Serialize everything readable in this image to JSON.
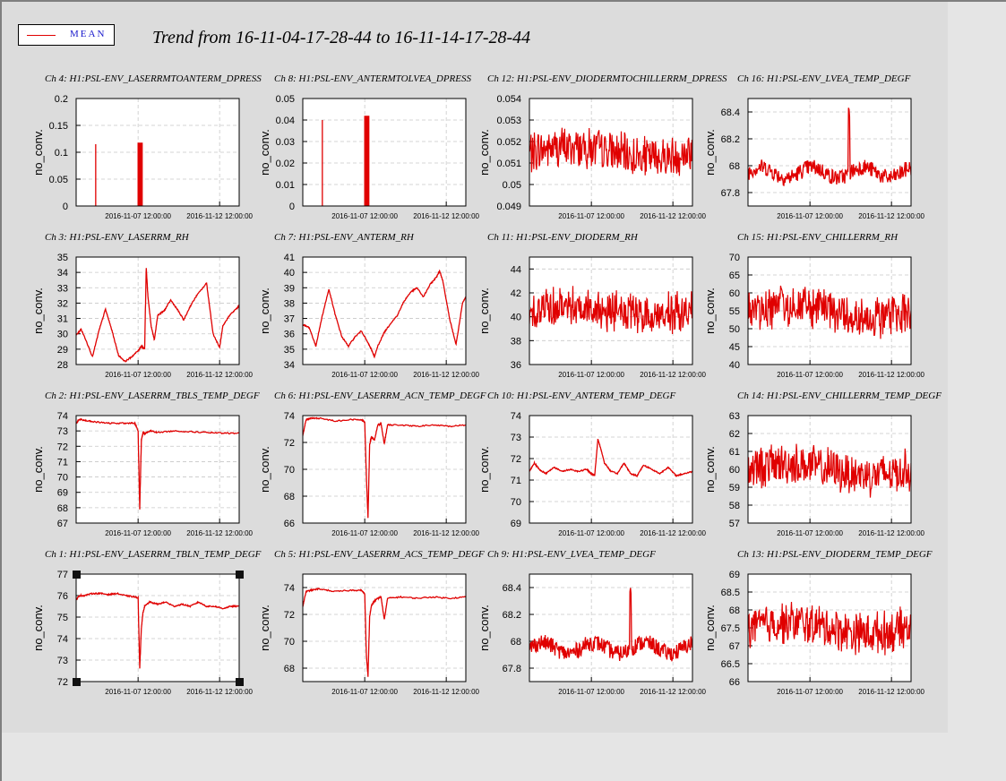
{
  "title": "Trend from 16-11-04-17-28-44 to 16-11-14-17-28-44",
  "legend": {
    "label": "MEAN",
    "color": "#e00000"
  },
  "chart_data": [
    {
      "type": "line",
      "title": "Ch 4: H1:PSL-ENV_LASERRMTOANTERM_DPRESS",
      "ylabel": "no_conv.",
      "ylim": [
        0,
        0.2
      ],
      "yticks": [
        "0",
        "0.05",
        "0.1",
        "0.15",
        "0.2"
      ],
      "xticks": [
        "2016-11-07 12:00:00",
        "2016-11-12 12:00:00"
      ],
      "style": "spikes"
    },
    {
      "type": "line",
      "title": "Ch 8: H1:PSL-ENV_ANTERMTOLVEA_DPRESS",
      "ylabel": "no_conv.",
      "ylim": [
        0,
        0.05
      ],
      "yticks": [
        "0",
        "0.01",
        "0.02",
        "0.03",
        "0.04",
        "0.05"
      ],
      "xticks": [
        "2016-11-07 12:00:00",
        "2016-11-12 12:00:00"
      ],
      "style": "spikes"
    },
    {
      "type": "line",
      "title": "Ch 12: H1:PSL-ENV_DIODERMTOCHILLERRM_DPRESS",
      "ylabel": "no_conv.",
      "ylim": [
        0.049,
        0.054
      ],
      "yticks": [
        "0.049",
        "0.05",
        "0.051",
        "0.052",
        "0.053",
        "0.054"
      ],
      "xticks": [
        "2016-11-07 12:00:00",
        "2016-11-12 12:00:00"
      ],
      "style": "noisy"
    },
    {
      "type": "line",
      "title": "Ch 16: H1:PSL-ENV_LVEA_TEMP_DEGF",
      "ylabel": "no_conv.",
      "ylim": [
        67.7,
        68.5
      ],
      "yticks": [
        "67.8",
        "68",
        "68.2",
        "68.4"
      ],
      "ytickvals": [
        67.8,
        68,
        68.2,
        68.4
      ],
      "xticks": [
        "2016-11-07 12:00:00",
        "2016-11-12 12:00:00"
      ],
      "style": "wiggle"
    },
    {
      "type": "line",
      "title": "Ch 3: H1:PSL-ENV_LASERRM_RH",
      "ylabel": "no_conv.",
      "ylim": [
        28,
        35
      ],
      "yticks": [
        "28",
        "29",
        "30",
        "31",
        "32",
        "33",
        "34",
        "35"
      ],
      "xticks": [
        "2016-11-07 12:00:00",
        "2016-11-12 12:00:00"
      ],
      "style": "smooth",
      "x": [
        0,
        0.03,
        0.06,
        0.1,
        0.14,
        0.18,
        0.22,
        0.26,
        0.3,
        0.34,
        0.38,
        0.4,
        0.42,
        0.43,
        0.44,
        0.46,
        0.48,
        0.5,
        0.54,
        0.58,
        0.62,
        0.66,
        0.7,
        0.74,
        0.8,
        0.84,
        0.88,
        0.9,
        0.94,
        0.98,
        1.0
      ],
      "y": [
        29.9,
        30.3,
        29.6,
        28.5,
        30.2,
        31.6,
        30.2,
        28.6,
        28.2,
        28.5,
        28.9,
        29.2,
        29.0,
        34.3,
        32.5,
        30.5,
        29.6,
        31.2,
        31.5,
        32.2,
        31.6,
        30.9,
        31.8,
        32.5,
        33.3,
        30.0,
        29.1,
        30.5,
        31.2,
        31.6,
        31.8
      ]
    },
    {
      "type": "line",
      "title": "Ch 7: H1:PSL-ENV_ANTERM_RH",
      "ylabel": "no_conv.",
      "ylim": [
        34,
        41
      ],
      "yticks": [
        "34",
        "35",
        "36",
        "37",
        "38",
        "39",
        "40",
        "41"
      ],
      "xticks": [
        "2016-11-07 12:00:00",
        "2016-11-12 12:00:00"
      ],
      "style": "smooth",
      "x": [
        0,
        0.04,
        0.08,
        0.12,
        0.16,
        0.2,
        0.24,
        0.28,
        0.32,
        0.36,
        0.4,
        0.42,
        0.44,
        0.46,
        0.5,
        0.54,
        0.58,
        0.62,
        0.66,
        0.7,
        0.74,
        0.78,
        0.82,
        0.84,
        0.86,
        0.9,
        0.94,
        0.98,
        1.0
      ],
      "y": [
        36.6,
        36.4,
        35.2,
        37.2,
        38.9,
        37.2,
        35.8,
        35.2,
        35.8,
        36.2,
        35.4,
        35.0,
        34.5,
        35.2,
        36.1,
        36.7,
        37.2,
        38.1,
        38.7,
        39.0,
        38.4,
        39.2,
        39.7,
        40.1,
        39.4,
        37.0,
        35.3,
        38.0,
        38.4
      ]
    },
    {
      "type": "line",
      "title": "Ch 11: H1:PSL-ENV_DIODERM_RH",
      "ylabel": "no_conv.",
      "ylim": [
        36,
        45
      ],
      "yticks": [
        "36",
        "38",
        "40",
        "42",
        "44"
      ],
      "ytickvals": [
        36,
        38,
        40,
        42,
        44
      ],
      "xticks": [
        "2016-11-07 12:00:00",
        "2016-11-12 12:00:00"
      ],
      "style": "noisy"
    },
    {
      "type": "line",
      "title": "Ch 15: H1:PSL-ENV_CHILLERRM_RH",
      "ylabel": "no_conv.",
      "ylim": [
        40,
        70
      ],
      "yticks": [
        "40",
        "45",
        "50",
        "55",
        "60",
        "65",
        "70"
      ],
      "xticks": [
        "2016-11-07 12:00:00",
        "2016-11-12 12:00:00"
      ],
      "style": "noisy"
    },
    {
      "type": "line",
      "title": "Ch 2: H1:PSL-ENV_LASERRM_TBLS_TEMP_DEGF",
      "ylabel": "no_conv.",
      "ylim": [
        67,
        74
      ],
      "yticks": [
        "67",
        "68",
        "69",
        "70",
        "71",
        "72",
        "73",
        "74"
      ],
      "xticks": [
        "2016-11-07 12:00:00",
        "2016-11-12 12:00:00"
      ],
      "style": "smooth",
      "x": [
        0,
        0.02,
        0.05,
        0.1,
        0.2,
        0.3,
        0.36,
        0.38,
        0.39,
        0.4,
        0.41,
        0.42,
        0.43,
        0.46,
        0.5,
        0.6,
        0.7,
        0.8,
        0.9,
        1.0
      ],
      "y": [
        73.5,
        73.75,
        73.7,
        73.6,
        73.5,
        73.5,
        73.5,
        73.0,
        67.9,
        72.4,
        72.9,
        72.8,
        72.9,
        73.0,
        72.9,
        73.0,
        72.95,
        72.9,
        72.85,
        72.85
      ]
    },
    {
      "type": "line",
      "title": "Ch 6: H1:PSL-ENV_LASERRM_ACN_TEMP_DEGF",
      "ylabel": "no_conv.",
      "ylim": [
        66,
        74
      ],
      "yticks": [
        "66",
        "68",
        "70",
        "72",
        "74"
      ],
      "ytickvals": [
        66,
        68,
        70,
        72,
        74
      ],
      "xticks": [
        "2016-11-07 12:00:00",
        "2016-11-12 12:00:00"
      ],
      "style": "smooth",
      "x": [
        0,
        0.02,
        0.05,
        0.1,
        0.2,
        0.3,
        0.36,
        0.38,
        0.39,
        0.4,
        0.41,
        0.42,
        0.44,
        0.46,
        0.48,
        0.5,
        0.52,
        0.6,
        0.7,
        0.8,
        0.9,
        1.0
      ],
      "y": [
        72.5,
        73.7,
        73.8,
        73.8,
        73.6,
        73.7,
        73.7,
        73.5,
        69.5,
        66.4,
        71.8,
        72.4,
        72.2,
        73.3,
        73.4,
        71.9,
        73.3,
        73.3,
        73.2,
        73.3,
        73.2,
        73.3
      ]
    },
    {
      "type": "line",
      "title": "Ch 10: H1:PSL-ENV_ANTERM_TEMP_DEGF",
      "ylabel": "no_conv.",
      "ylim": [
        69,
        74
      ],
      "yticks": [
        "69",
        "70",
        "71",
        "72",
        "73",
        "74"
      ],
      "xticks": [
        "2016-11-07 12:00:00",
        "2016-11-12 12:00:00"
      ],
      "style": "smooth",
      "x": [
        0,
        0.03,
        0.06,
        0.1,
        0.15,
        0.2,
        0.25,
        0.3,
        0.35,
        0.38,
        0.4,
        0.42,
        0.44,
        0.46,
        0.5,
        0.54,
        0.58,
        0.62,
        0.66,
        0.7,
        0.75,
        0.8,
        0.85,
        0.9,
        0.95,
        1.0
      ],
      "y": [
        71.4,
        71.8,
        71.5,
        71.3,
        71.6,
        71.4,
        71.5,
        71.4,
        71.5,
        71.3,
        71.2,
        72.9,
        72.4,
        71.8,
        71.4,
        71.3,
        71.8,
        71.3,
        71.2,
        71.7,
        71.5,
        71.3,
        71.6,
        71.2,
        71.3,
        71.4
      ]
    },
    {
      "type": "line",
      "title": "Ch 14: H1:PSL-ENV_CHILLERRM_TEMP_DEGF",
      "ylabel": "no_conv.",
      "ylim": [
        57,
        63
      ],
      "yticks": [
        "57",
        "58",
        "59",
        "60",
        "61",
        "62",
        "63"
      ],
      "xticks": [
        "2016-11-07 12:00:00",
        "2016-11-12 12:00:00"
      ],
      "style": "noisy"
    },
    {
      "type": "line",
      "title": "Ch 1: H1:PSL-ENV_LASERRM_TBLN_TEMP_DEGF",
      "ylabel": "no_conv.",
      "ylim": [
        72,
        77
      ],
      "yticks": [
        "72",
        "73",
        "74",
        "75",
        "76",
        "77"
      ],
      "xticks": [
        "2016-11-07 12:00:00",
        "2016-11-12 12:00:00"
      ],
      "style": "smooth",
      "x": [
        0,
        0.02,
        0.05,
        0.1,
        0.15,
        0.2,
        0.25,
        0.3,
        0.35,
        0.38,
        0.39,
        0.4,
        0.41,
        0.42,
        0.45,
        0.5,
        0.55,
        0.6,
        0.65,
        0.7,
        0.75,
        0.8,
        0.85,
        0.9,
        0.95,
        1.0
      ],
      "y": [
        75.8,
        76.0,
        76.0,
        76.1,
        76.1,
        76.05,
        76.1,
        76.0,
        75.95,
        75.9,
        72.6,
        74.5,
        75.2,
        75.5,
        75.7,
        75.6,
        75.7,
        75.5,
        75.6,
        75.5,
        75.7,
        75.5,
        75.5,
        75.4,
        75.5,
        75.5
      ]
    },
    {
      "type": "line",
      "title": "Ch 5: H1:PSL-ENV_LASERRM_ACS_TEMP_DEGF",
      "ylabel": "no_conv.",
      "ylim": [
        67,
        75
      ],
      "yticks": [
        "68",
        "70",
        "72",
        "74"
      ],
      "ytickvals": [
        68,
        70,
        72,
        74
      ],
      "xticks": [
        "2016-11-07 12:00:00",
        "2016-11-12 12:00:00"
      ],
      "style": "smooth",
      "x": [
        0,
        0.02,
        0.05,
        0.1,
        0.2,
        0.3,
        0.36,
        0.38,
        0.39,
        0.4,
        0.41,
        0.42,
        0.44,
        0.46,
        0.48,
        0.5,
        0.52,
        0.6,
        0.7,
        0.8,
        0.9,
        1.0
      ],
      "y": [
        72.6,
        73.7,
        73.8,
        73.9,
        73.7,
        73.8,
        73.8,
        73.5,
        69.0,
        67.4,
        71.8,
        72.6,
        73.0,
        73.2,
        73.3,
        71.6,
        73.2,
        73.3,
        73.2,
        73.3,
        73.2,
        73.3
      ]
    },
    {
      "type": "line",
      "title": "Ch 9: H1:PSL-ENV_LVEA_TEMP_DEGF",
      "ylabel": "no_conv.",
      "ylim": [
        67.7,
        68.5
      ],
      "yticks": [
        "67.8",
        "68",
        "68.2",
        "68.4"
      ],
      "ytickvals": [
        67.8,
        68,
        68.2,
        68.4
      ],
      "xticks": [
        "2016-11-07 12:00:00",
        "2016-11-12 12:00:00"
      ],
      "style": "wiggle"
    },
    {
      "type": "line",
      "title": "Ch 13: H1:PSL-ENV_DIODERM_TEMP_DEGF",
      "ylabel": "no_conv.",
      "ylim": [
        66,
        69
      ],
      "yticks": [
        "66",
        "66.5",
        "67",
        "67.5",
        "68",
        "68.5",
        "69"
      ],
      "xticks": [
        "2016-11-07 12:00:00",
        "2016-11-12 12:00:00"
      ],
      "style": "noisy"
    }
  ]
}
